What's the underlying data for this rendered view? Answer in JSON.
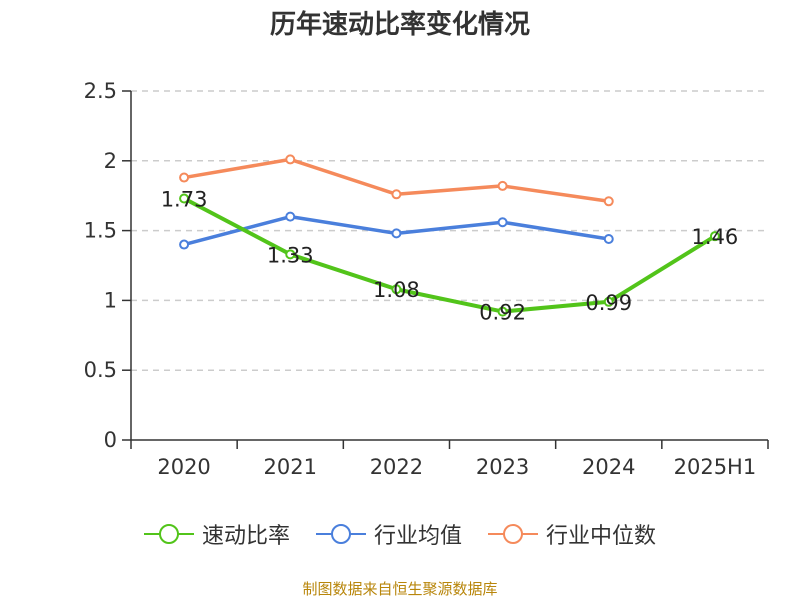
{
  "chart_data": {
    "type": "line",
    "title": "历年速动比率变化情况",
    "categories": [
      "2020",
      "2021",
      "2022",
      "2023",
      "2024",
      "2025H1"
    ],
    "y_ticks": [
      "0",
      "0.5",
      "1",
      "1.5",
      "2",
      "2.5"
    ],
    "ylim": [
      0,
      2.5
    ],
    "grid": true,
    "legend_position": "bottom",
    "series": [
      {
        "name": "速动比率",
        "color": "#52c41a",
        "values": [
          1.73,
          1.33,
          1.08,
          0.92,
          0.99,
          1.46
        ],
        "labels": [
          "1.73",
          "1.33",
          "1.08",
          "0.92",
          "0.99",
          "1.46"
        ]
      },
      {
        "name": "行业均值",
        "color": "#4a7fdc",
        "values": [
          1.4,
          1.6,
          1.48,
          1.56,
          1.44,
          null
        ]
      },
      {
        "name": "行业中位数",
        "color": "#f58a5b",
        "values": [
          1.88,
          2.01,
          1.76,
          1.82,
          1.71,
          null
        ]
      }
    ]
  },
  "source": "制图数据来自恒生聚源数据库"
}
